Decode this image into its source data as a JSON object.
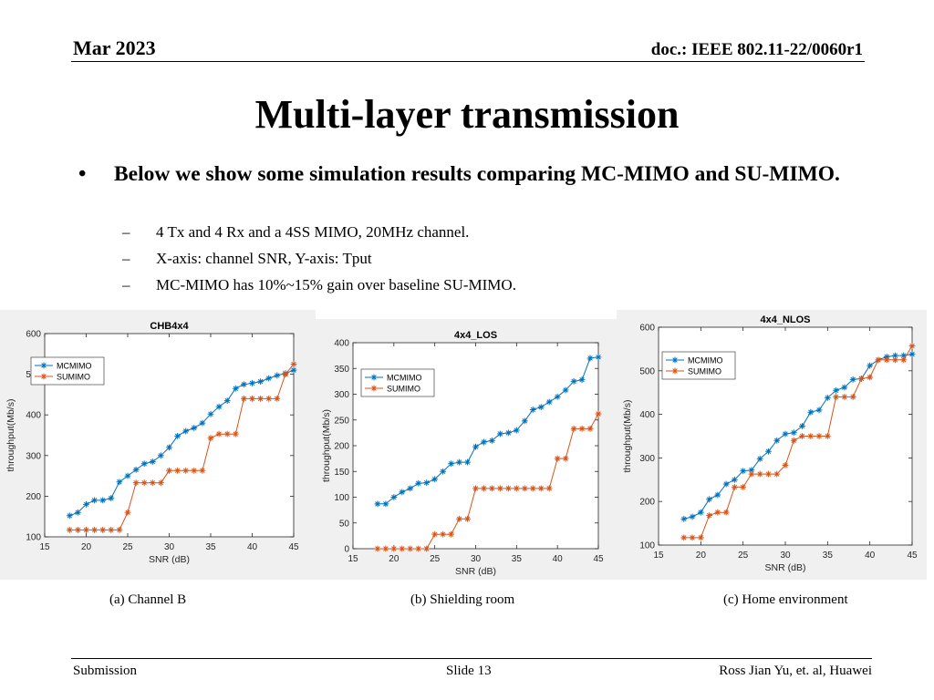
{
  "header": {
    "date": "Mar 2023",
    "doc": "doc.: IEEE 802.11-22/0060r1"
  },
  "title": "Multi-layer transmission",
  "bullet": {
    "text": "Below we show some simulation results comparing MC-MIMO and SU-MIMO.",
    "subs": [
      "4 Tx and 4 Rx and a 4SS MIMO, 20MHz channel.",
      "X-axis: channel SNR, Y-axis: Tput",
      "MC-MIMO has 10%~15% gain over baseline SU-MIMO."
    ]
  },
  "captions": [
    "(a) Channel B",
    "(b) Shielding room",
    "(c) Home environment"
  ],
  "footer": {
    "left": "Submission",
    "center": "Slide 13",
    "right": "Ross Jian Yu, et. al, Huawei"
  },
  "colors": {
    "mcmimo": "#0072bd",
    "sumimo": "#d95319",
    "chart_bg": "#f0f0f0"
  },
  "chart_data": [
    {
      "type": "line",
      "title": "CHB4x4",
      "xlabel": "SNR (dB)",
      "ylabel": "throughput(Mb/s)",
      "xlim": [
        15,
        45
      ],
      "ylim": [
        100,
        600
      ],
      "xticks": [
        15,
        20,
        25,
        30,
        35,
        40,
        45
      ],
      "yticks": [
        100,
        200,
        300,
        400,
        500,
        600
      ],
      "legend": "top-left",
      "x": [
        18,
        19,
        20,
        21,
        22,
        23,
        24,
        25,
        26,
        27,
        28,
        29,
        30,
        31,
        32,
        33,
        34,
        35,
        36,
        37,
        38,
        39,
        40,
        41,
        42,
        43,
        44,
        45
      ],
      "series": [
        {
          "name": "MCMIMO",
          "values": [
            152,
            160,
            180,
            190,
            190,
            195,
            235,
            250,
            265,
            280,
            285,
            300,
            320,
            348,
            360,
            368,
            380,
            402,
            420,
            435,
            465,
            475,
            478,
            482,
            490,
            497,
            502,
            510
          ]
        },
        {
          "name": "SUMIMO",
          "values": [
            117,
            117,
            117,
            117,
            117,
            117,
            117,
            160,
            233,
            233,
            233,
            233,
            263,
            263,
            263,
            263,
            263,
            343,
            353,
            353,
            353,
            440,
            440,
            440,
            440,
            440,
            500,
            525
          ]
        }
      ]
    },
    {
      "type": "line",
      "title": "4x4_LOS",
      "xlabel": "SNR (dB)",
      "ylabel": "throughput(Mb/s)",
      "xlim": [
        15,
        45
      ],
      "ylim": [
        0,
        400
      ],
      "xticks": [
        15,
        20,
        25,
        30,
        35,
        40,
        45
      ],
      "yticks": [
        0,
        50,
        100,
        150,
        200,
        250,
        300,
        350,
        400
      ],
      "legend": "top-left",
      "x": [
        18,
        19,
        20,
        21,
        22,
        23,
        24,
        25,
        26,
        27,
        28,
        29,
        30,
        31,
        32,
        33,
        34,
        35,
        36,
        37,
        38,
        39,
        40,
        41,
        42,
        43,
        44,
        45
      ],
      "series": [
        {
          "name": "MCMIMO",
          "values": [
            87,
            87,
            100,
            110,
            117,
            127,
            128,
            135,
            150,
            165,
            168,
            168,
            198,
            207,
            210,
            223,
            225,
            230,
            248,
            270,
            275,
            285,
            295,
            308,
            325,
            328,
            370,
            372
          ]
        },
        {
          "name": "SUMIMO",
          "values": [
            0,
            0,
            0,
            0,
            0,
            0,
            0,
            28,
            28,
            28,
            58,
            58,
            117,
            117,
            117,
            117,
            117,
            117,
            117,
            117,
            117,
            117,
            175,
            175,
            233,
            233,
            233,
            262
          ]
        }
      ]
    },
    {
      "type": "line",
      "title": "4x4_NLOS",
      "xlabel": "SNR (dB)",
      "ylabel": "throughput(Mb/s)",
      "xlim": [
        15,
        45
      ],
      "ylim": [
        100,
        600
      ],
      "xticks": [
        15,
        20,
        25,
        30,
        35,
        40,
        45
      ],
      "yticks": [
        100,
        200,
        300,
        400,
        500,
        600
      ],
      "legend": "top-left",
      "x": [
        18,
        19,
        20,
        21,
        22,
        23,
        24,
        25,
        26,
        27,
        28,
        29,
        30,
        31,
        32,
        33,
        34,
        35,
        36,
        37,
        38,
        39,
        40,
        41,
        42,
        43,
        44,
        45
      ],
      "series": [
        {
          "name": "MCMIMO",
          "values": [
            160,
            165,
            175,
            205,
            215,
            240,
            250,
            270,
            272,
            298,
            315,
            340,
            355,
            358,
            373,
            405,
            410,
            438,
            455,
            462,
            480,
            482,
            512,
            525,
            532,
            535,
            535,
            538
          ]
        },
        {
          "name": "SUMIMO",
          "values": [
            117,
            117,
            117,
            168,
            175,
            175,
            233,
            233,
            263,
            263,
            263,
            263,
            283,
            340,
            350,
            350,
            350,
            350,
            440,
            440,
            440,
            482,
            485,
            525,
            525,
            525,
            525,
            557
          ]
        }
      ]
    }
  ]
}
